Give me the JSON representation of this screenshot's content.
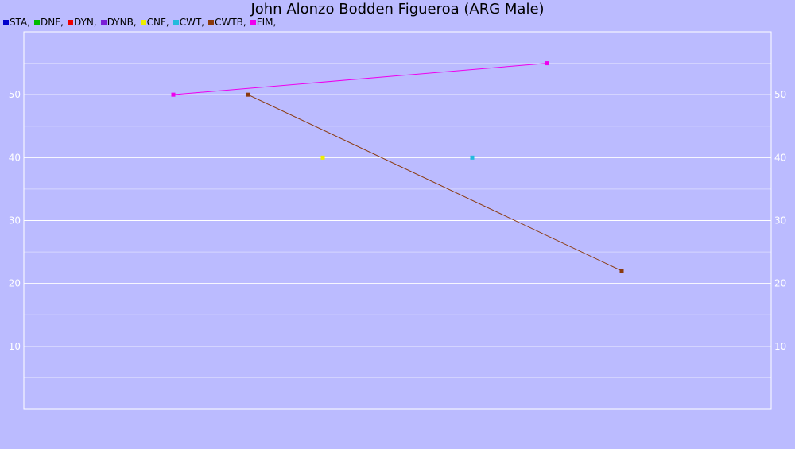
{
  "chart_data": {
    "type": "line",
    "title": "John Alonzo Bodden Figueroa (ARG Male)",
    "xlabel": "",
    "ylabel": "",
    "ylim": [
      0,
      60
    ],
    "xlim": [
      0,
      10
    ],
    "yticks": [
      10,
      20,
      30,
      40,
      50
    ],
    "grid": true,
    "legend_position": "top-left",
    "series": [
      {
        "name": "STA",
        "color": "#0000cc",
        "points": []
      },
      {
        "name": "DNF",
        "color": "#00bb00",
        "points": []
      },
      {
        "name": "DYN",
        "color": "#ee0000",
        "points": []
      },
      {
        "name": "DYNB",
        "color": "#7a1fd6",
        "points": []
      },
      {
        "name": "CNF",
        "color": "#eeee00",
        "points": [
          {
            "x": 4,
            "y": 40
          }
        ]
      },
      {
        "name": "CWT",
        "color": "#22bbdd",
        "points": [
          {
            "x": 6,
            "y": 40
          }
        ]
      },
      {
        "name": "CWTB",
        "color": "#8b3a0e",
        "points": [
          {
            "x": 3,
            "y": 50
          },
          {
            "x": 8,
            "y": 22
          }
        ]
      },
      {
        "name": "FIM",
        "color": "#ee00ee",
        "points": [
          {
            "x": 2,
            "y": 50
          },
          {
            "x": 7,
            "y": 55
          }
        ]
      }
    ]
  }
}
